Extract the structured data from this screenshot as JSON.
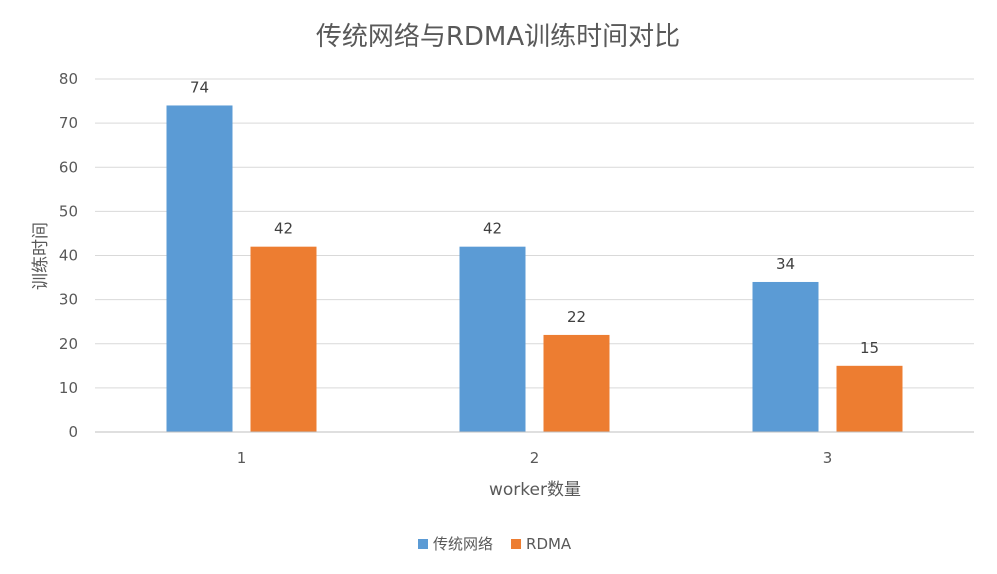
{
  "chart_data": {
    "type": "bar",
    "title": "传统网络与RDMA训练时间对比",
    "xlabel": "worker数量",
    "ylabel": "训练时间",
    "categories": [
      "1",
      "2",
      "3"
    ],
    "series": [
      {
        "name": "传统网络",
        "values": [
          74,
          42,
          34
        ],
        "color": "#5b9bd5"
      },
      {
        "name": "RDMA",
        "values": [
          42,
          22,
          15
        ],
        "color": "#ed7d31"
      }
    ],
    "ylim": [
      0,
      80
    ],
    "yticks": [
      0,
      10,
      20,
      30,
      40,
      50,
      60,
      70,
      80
    ],
    "grid": true,
    "legend_position": "bottom"
  }
}
